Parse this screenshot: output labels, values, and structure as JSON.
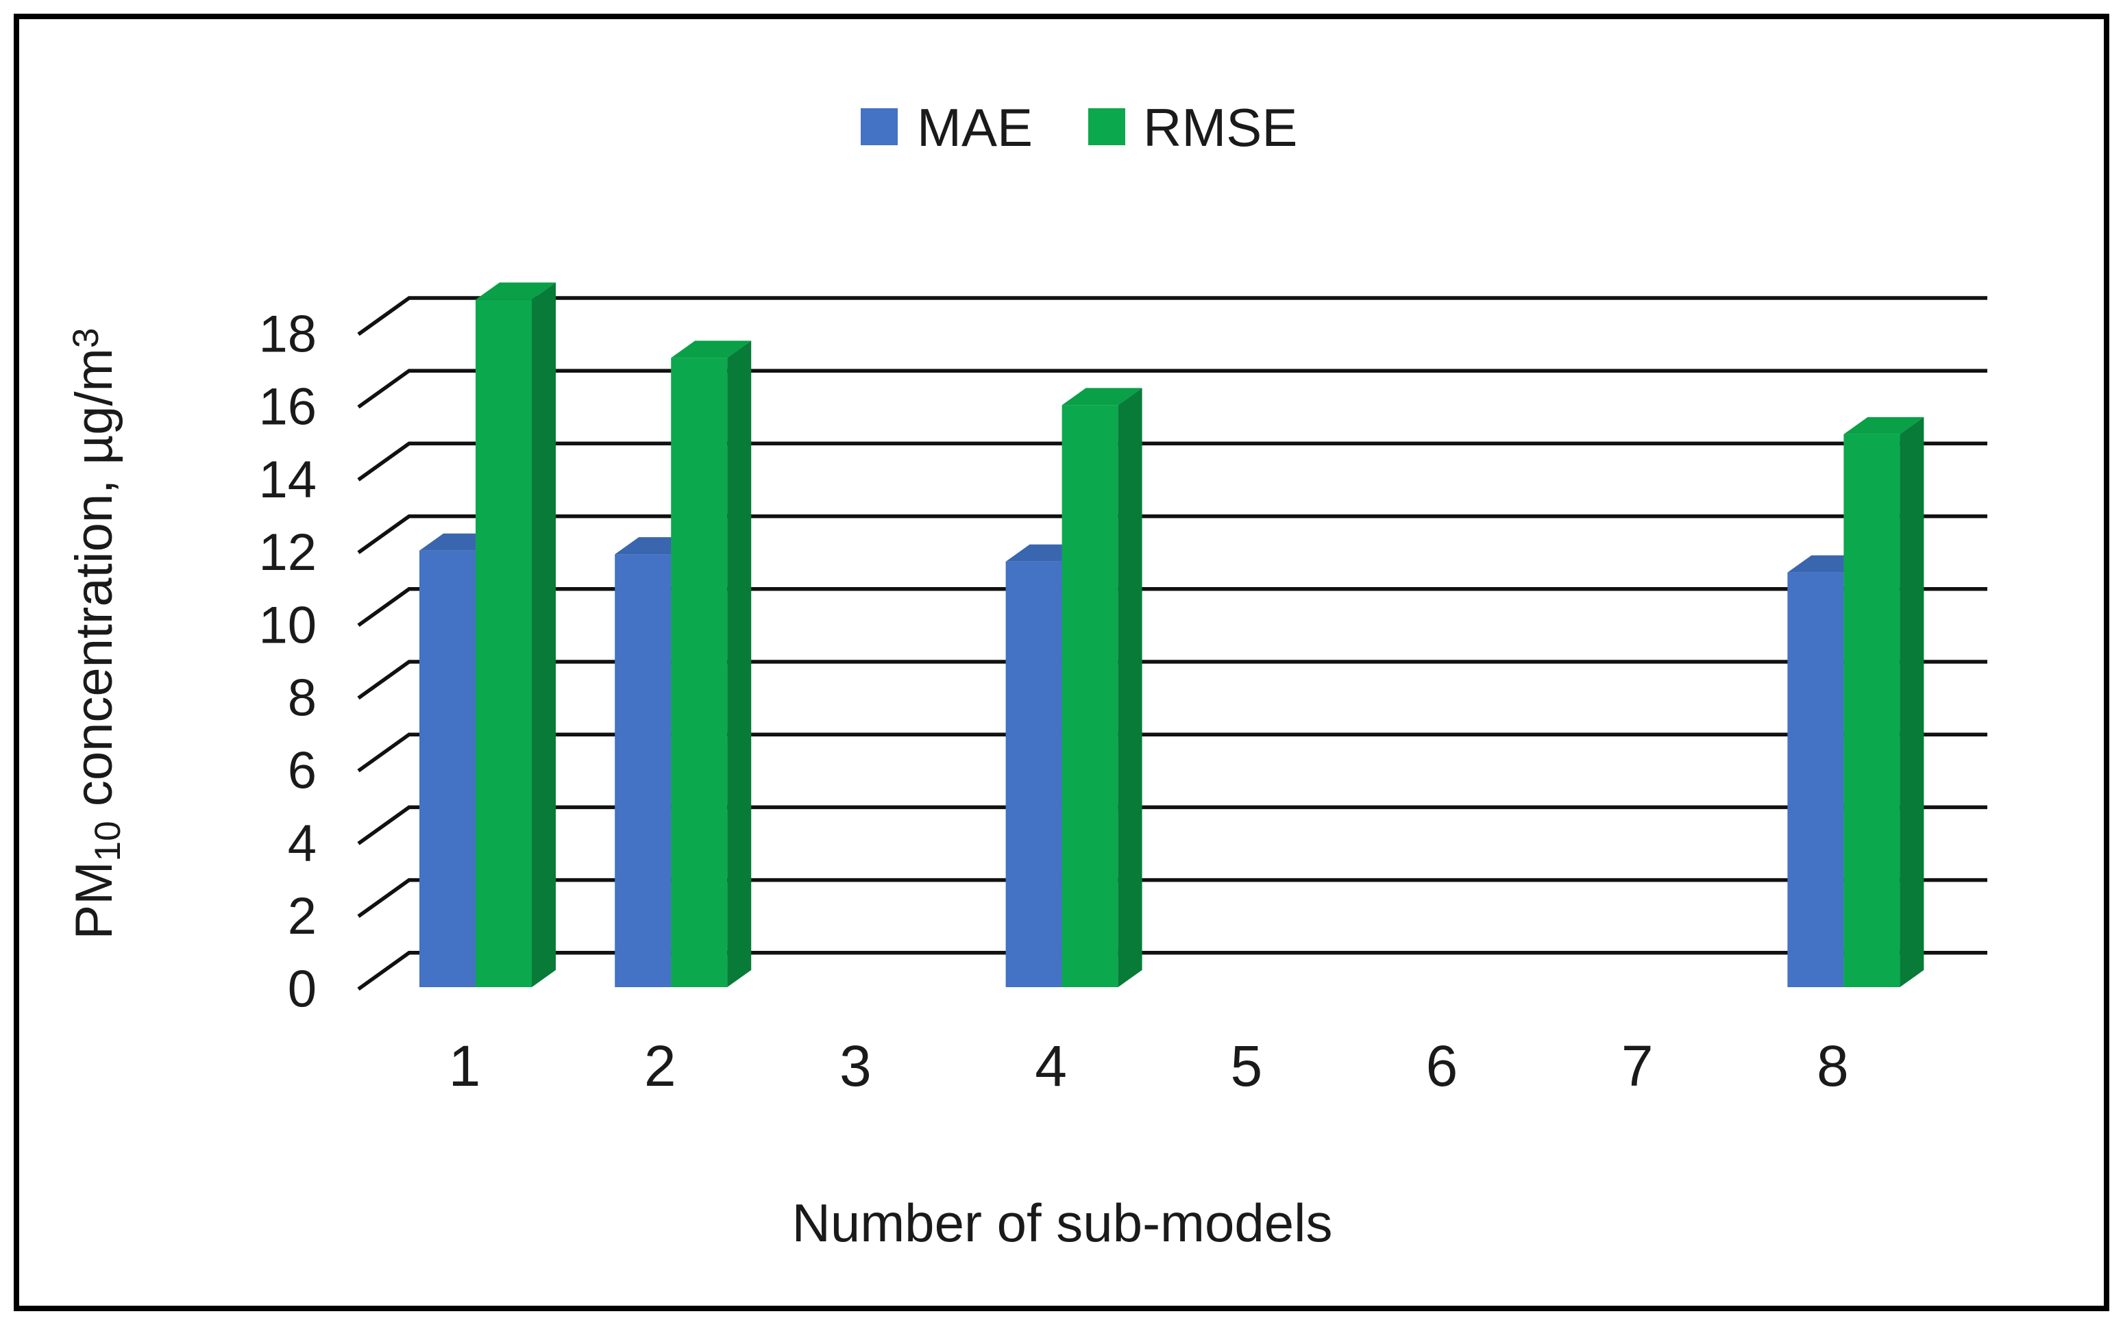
{
  "figure": {
    "background": "#ffffff",
    "border_color": "#000000",
    "grid_color": "#111111",
    "text_color": "#1a1a1a"
  },
  "legend": {
    "items": [
      {
        "label": "MAE",
        "color": "#4472C4"
      },
      {
        "label": "RMSE",
        "color": "#0CA84E"
      }
    ]
  },
  "chart_data": {
    "type": "bar",
    "projection": "3d",
    "title": "",
    "xlabel": "Number of sub-models",
    "ylabel": "PM10 concentration, µg/m³",
    "ylabel_parts": [
      {
        "t": "PM"
      },
      {
        "t": "10",
        "sub": true
      },
      {
        "t": " concentration, µg/m"
      },
      {
        "t": "3",
        "sup": true
      }
    ],
    "categories": [
      "1",
      "2",
      "3",
      "4",
      "5",
      "6",
      "7",
      "8"
    ],
    "series": [
      {
        "name": "MAE",
        "color": "#4472C4",
        "color_top": "#3A66B0",
        "color_side": "#2E5597",
        "values": [
          12.0,
          11.9,
          null,
          11.7,
          null,
          null,
          null,
          11.4
        ]
      },
      {
        "name": "RMSE",
        "color": "#0CA84E",
        "color_top": "#09A047",
        "color_side": "#077B37",
        "values": [
          18.9,
          17.3,
          null,
          16.0,
          null,
          null,
          null,
          15.2
        ]
      }
    ],
    "ylim": [
      0,
      18
    ],
    "ytick_step": 2,
    "yticks": [
      0,
      2,
      4,
      6,
      8,
      10,
      12,
      14,
      16,
      18
    ],
    "grid": true,
    "legend_position": "top"
  }
}
